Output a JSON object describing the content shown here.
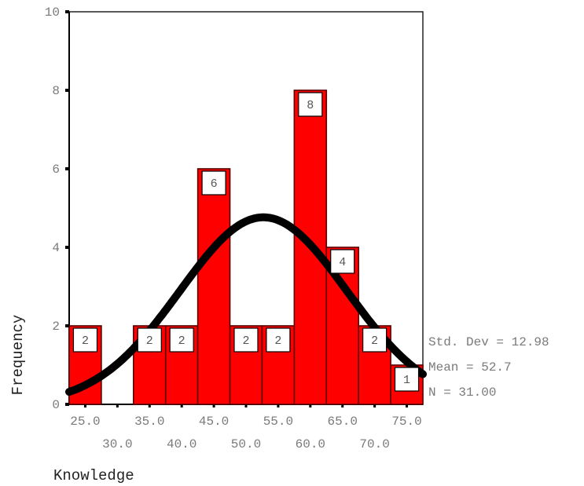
{
  "chart_data": {
    "type": "bar",
    "subtype": "histogram-with-normal-curve",
    "xlabel": "Knowledge",
    "ylabel": "Frequency",
    "ylim": [
      0,
      10
    ],
    "yticks": [
      "0",
      "2",
      "4",
      "6",
      "8",
      "10"
    ],
    "xticks_upper": [
      "25.0",
      "35.0",
      "45.0",
      "55.0",
      "65.0",
      "75.0"
    ],
    "xticks_lower": [
      "30.0",
      "40.0",
      "50.0",
      "60.0",
      "70.0"
    ],
    "categories": [
      "25.0",
      "30.0",
      "35.0",
      "40.0",
      "45.0",
      "50.0",
      "55.0",
      "60.0",
      "65.0",
      "70.0",
      "75.0"
    ],
    "values": [
      2,
      0,
      2,
      2,
      6,
      2,
      2,
      8,
      4,
      2,
      1
    ],
    "bar_labels": [
      "2",
      "",
      "2",
      "2",
      "6",
      "2",
      "2",
      "8",
      "4",
      "2",
      "1"
    ],
    "bin_width": 5,
    "grid": false,
    "normal_curve": {
      "mean": 52.7,
      "std_dev": 12.98,
      "n": 31
    },
    "stats": {
      "std_dev_text": "Std. Dev = 12.98",
      "mean_text": "Mean = 52.7",
      "n_text": "N = 31.00"
    },
    "colors": {
      "bar_fill": "#ff0000",
      "bar_stroke": "#5a0000",
      "curve": "#000000",
      "axis": "#000000"
    }
  }
}
